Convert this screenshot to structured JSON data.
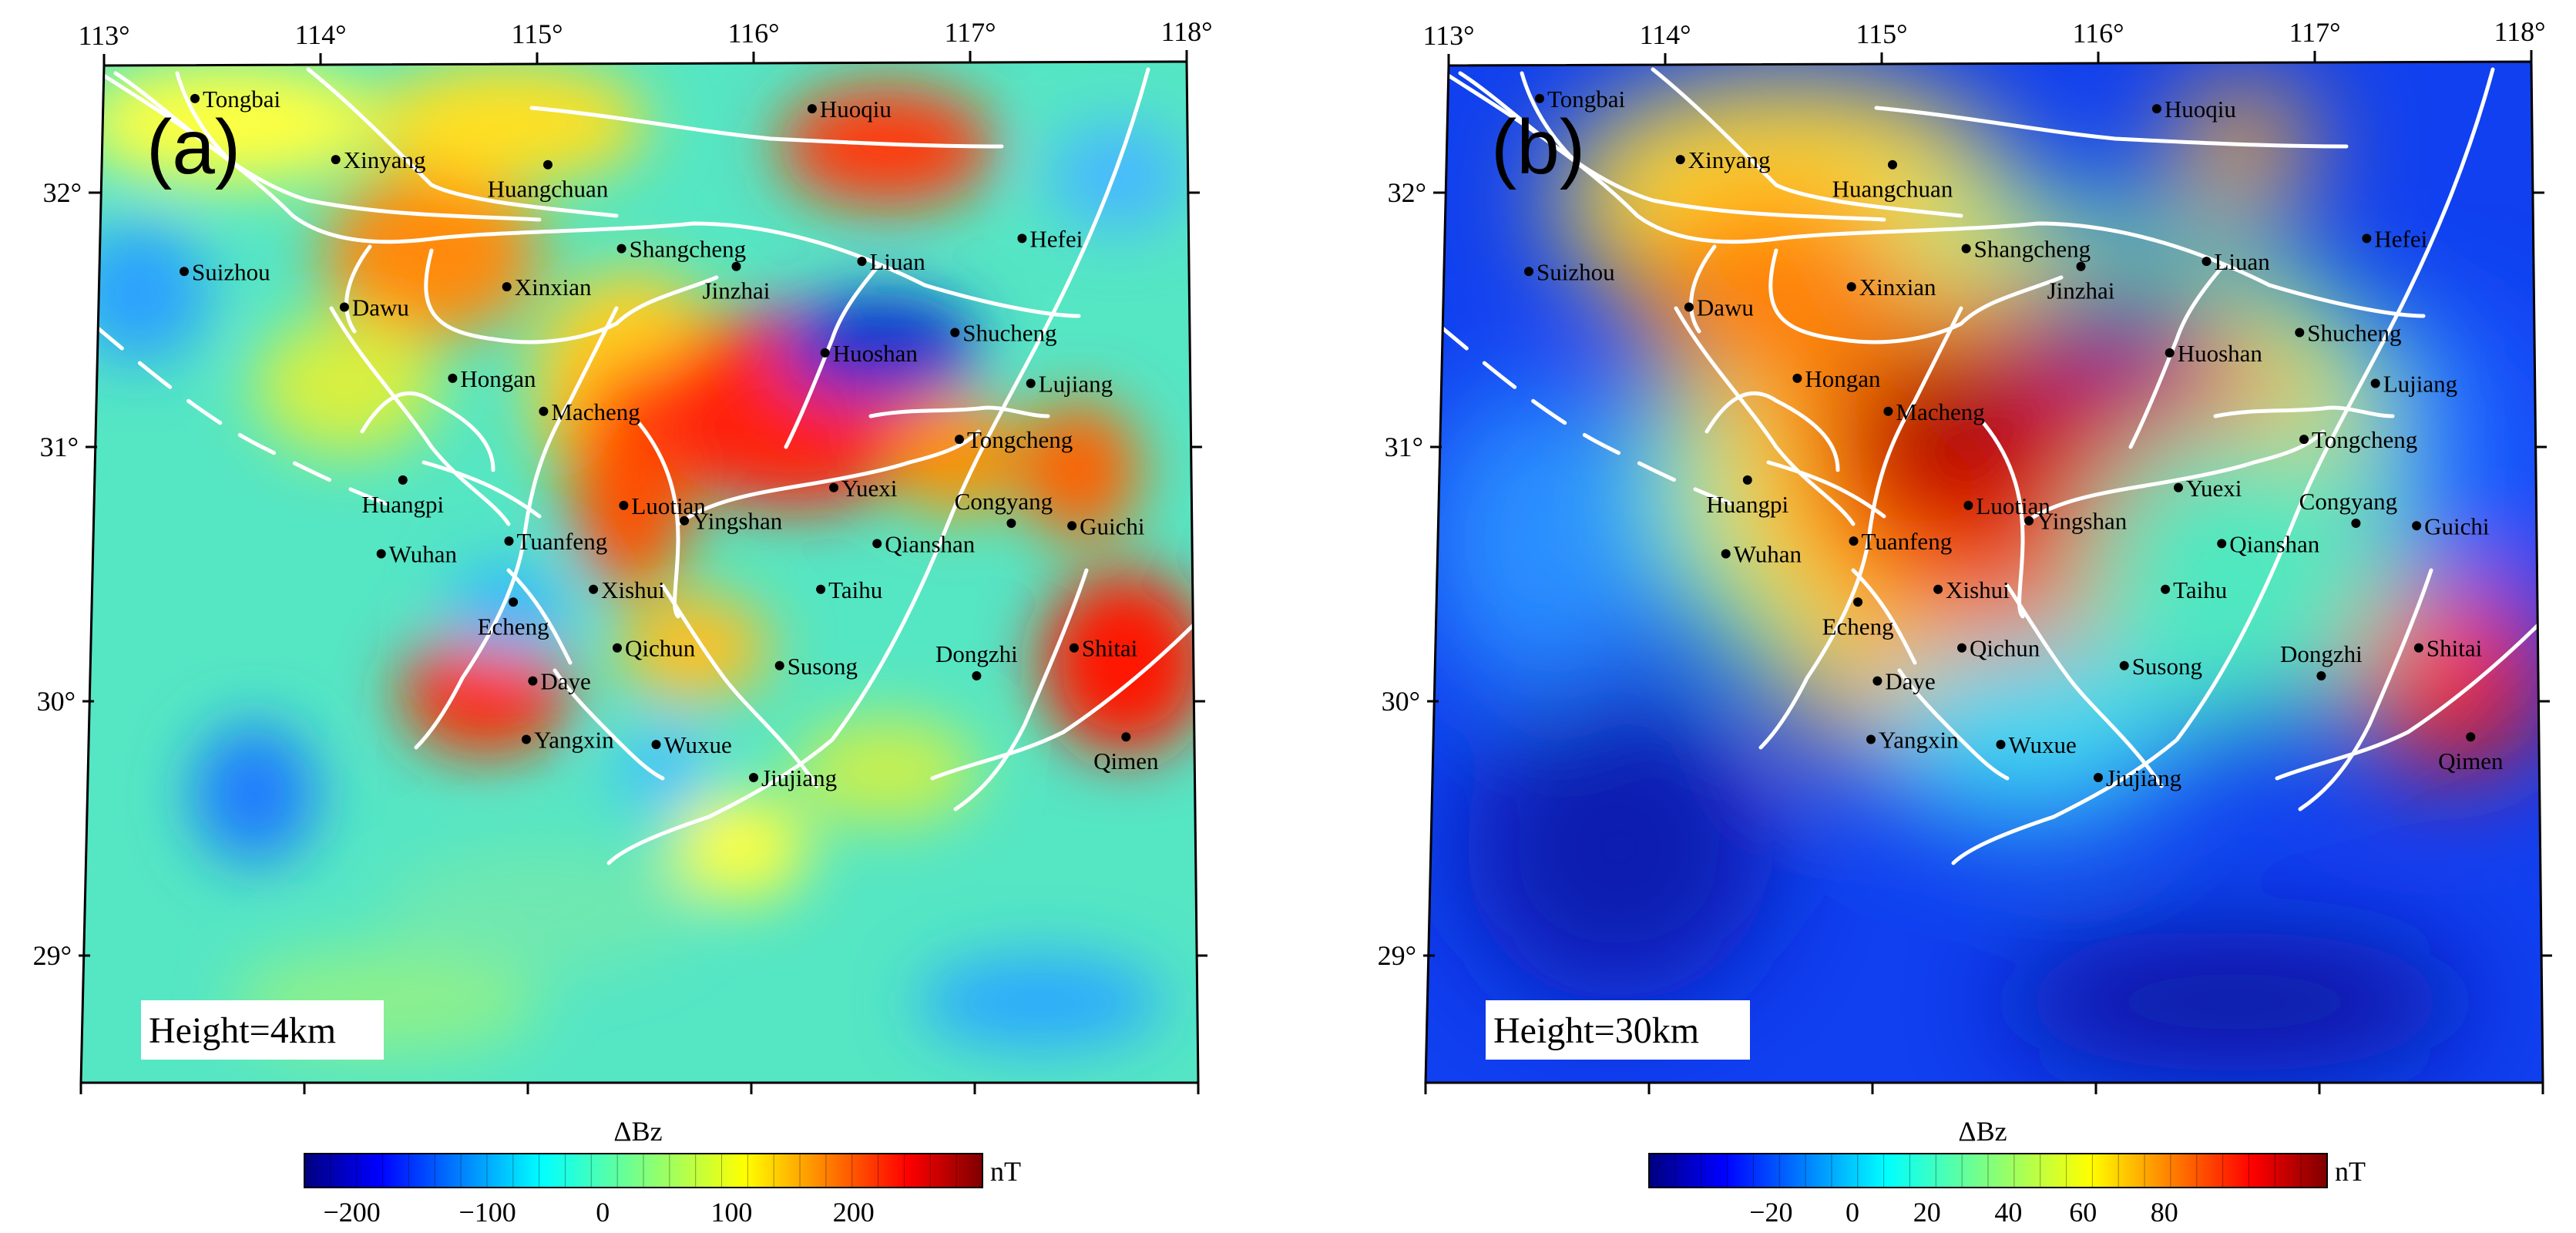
{
  "panels": [
    {
      "id": "a",
      "label": "(a)",
      "height_label": "Height=4km",
      "colorbar": {
        "title": "ΔBz",
        "unit": "nT",
        "tick_labels": [
          "−200",
          "−100",
          "0",
          "100",
          "200"
        ]
      },
      "lon_ticks": [
        "113°",
        "114°",
        "115°",
        "116°",
        "117°",
        "118°"
      ],
      "lat_ticks": [
        "32°",
        "31°",
        "30°",
        "29°"
      ]
    },
    {
      "id": "b",
      "label": "(b)",
      "height_label": "Height=30km",
      "colorbar": {
        "title": "ΔBz",
        "unit": "nT",
        "tick_labels": [
          "−20",
          "0",
          "20",
          "40",
          "60",
          "80"
        ]
      },
      "lon_ticks": [
        "113°",
        "114°",
        "115°",
        "116°",
        "117°",
        "118°"
      ],
      "lat_ticks": [
        "32°",
        "31°",
        "30°",
        "29°"
      ]
    }
  ],
  "cities": [
    {
      "name": "Tongbai",
      "lon": 113.42,
      "lat": 32.37
    },
    {
      "name": "Xinyang",
      "lon": 114.07,
      "lat": 32.13
    },
    {
      "name": "Huangchuan",
      "lon": 115.05,
      "lat": 32.11
    },
    {
      "name": "Huoqiu",
      "lon": 116.27,
      "lat": 32.33
    },
    {
      "name": "Suizhou",
      "lon": 113.37,
      "lat": 31.69
    },
    {
      "name": "Dawu",
      "lon": 114.11,
      "lat": 31.55
    },
    {
      "name": "Xinxian",
      "lon": 114.86,
      "lat": 31.63
    },
    {
      "name": "Shangcheng",
      "lon": 115.39,
      "lat": 31.78
    },
    {
      "name": "Jinzhai",
      "lon": 115.92,
      "lat": 31.71
    },
    {
      "name": "Liuan",
      "lon": 116.5,
      "lat": 31.73
    },
    {
      "name": "Hefei",
      "lon": 117.24,
      "lat": 31.82
    },
    {
      "name": "Hongan",
      "lon": 114.61,
      "lat": 31.27
    },
    {
      "name": "Macheng",
      "lon": 115.03,
      "lat": 31.14
    },
    {
      "name": "Huoshan",
      "lon": 116.33,
      "lat": 31.37
    },
    {
      "name": "Shucheng",
      "lon": 116.93,
      "lat": 31.45
    },
    {
      "name": "Lujiang",
      "lon": 117.28,
      "lat": 31.25
    },
    {
      "name": "Tongcheng",
      "lon": 116.95,
      "lat": 31.03
    },
    {
      "name": "Huangpi",
      "lon": 114.38,
      "lat": 30.87
    },
    {
      "name": "Luotian",
      "lon": 115.4,
      "lat": 30.77
    },
    {
      "name": "Yuexi",
      "lon": 116.37,
      "lat": 30.84
    },
    {
      "name": "Yingshan",
      "lon": 115.68,
      "lat": 30.71
    },
    {
      "name": "Congyang",
      "lon": 117.19,
      "lat": 30.7,
      "label": "Congyang",
      "label_pos": "above"
    },
    {
      "name": "Guichi",
      "lon": 117.47,
      "lat": 30.69
    },
    {
      "name": "Wuhan",
      "lon": 114.28,
      "lat": 30.58
    },
    {
      "name": "Tuanfeng",
      "lon": 114.87,
      "lat": 30.63
    },
    {
      "name": "Qianshan",
      "lon": 116.57,
      "lat": 30.62
    },
    {
      "name": "Echeng",
      "lon": 114.89,
      "lat": 30.39,
      "label_pos": "below"
    },
    {
      "name": "Xishui",
      "lon": 115.26,
      "lat": 30.44
    },
    {
      "name": "Taihu",
      "lon": 116.31,
      "lat": 30.44
    },
    {
      "name": "Qichun",
      "lon": 115.37,
      "lat": 30.21
    },
    {
      "name": "Shitai",
      "lon": 117.48,
      "lat": 30.21
    },
    {
      "name": "Dongzhi",
      "lon": 117.03,
      "lat": 30.1,
      "label_pos": "above"
    },
    {
      "name": "Daye",
      "lon": 114.98,
      "lat": 30.08
    },
    {
      "name": "Susong",
      "lon": 116.12,
      "lat": 30.14
    },
    {
      "name": "Yangxin",
      "lon": 114.95,
      "lat": 29.85
    },
    {
      "name": "Wuxue",
      "lon": 115.55,
      "lat": 29.83
    },
    {
      "name": "Qimen",
      "lon": 117.72,
      "lat": 29.86,
      "label_pos": "below"
    },
    {
      "name": "Jiujiang",
      "lon": 116.0,
      "lat": 29.7
    }
  ],
  "colors": {
    "colormap": [
      "#00007f",
      "#0000ff",
      "#007fff",
      "#00ffff",
      "#7fff7f",
      "#ffff00",
      "#ff7f00",
      "#ff0000",
      "#7f0000"
    ],
    "fault_lines": "#ffffff",
    "frame": "#000000",
    "label_box": "#ffffff"
  }
}
